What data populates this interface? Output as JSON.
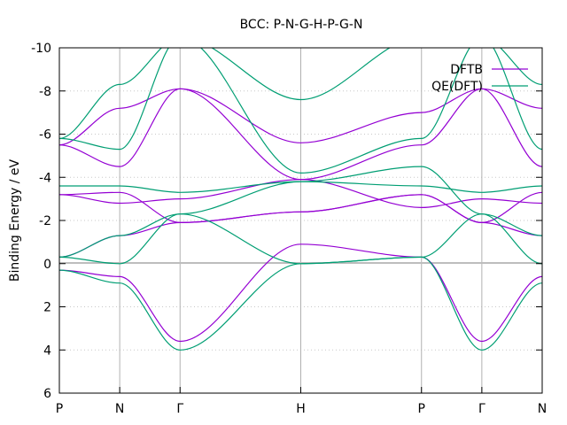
{
  "chart_data": {
    "type": "line",
    "title": "BCC: P-N-G-H-P-G-N",
    "xlabel": "",
    "ylabel": "Binding Energy / eV",
    "ylim": [
      6,
      -10
    ],
    "y_ticks": [
      "-10",
      "-8",
      "-6",
      "-4",
      "-2",
      "0",
      "2",
      "4",
      "6"
    ],
    "y_tick_values": [
      -10,
      -8,
      -6,
      -4,
      -2,
      0,
      2,
      4,
      6
    ],
    "x_ticks": [
      "P",
      "N",
      "Γ",
      "H",
      "P",
      "Γ",
      "N"
    ],
    "x_tick_values": [
      0.0,
      0.5,
      1.0,
      2.0,
      3.0,
      3.5,
      4.0
    ],
    "grid": true,
    "legend_position": "top-right",
    "fermi_level": 0,
    "series": [
      {
        "name": "DFTB",
        "color": "#9400d3",
        "x": [
          0,
          0.5,
          1,
          2,
          3,
          3.5,
          4
        ],
        "bands": [
          [
            0.3,
            0.6,
            3.6,
            -0.9,
            -0.3,
            3.6,
            0.6
          ],
          [
            -0.3,
            -1.3,
            -1.9,
            -2.4,
            -3.2,
            -1.9,
            -1.3
          ],
          [
            -3.2,
            -3.3,
            -1.9,
            -2.4,
            -3.2,
            -1.9,
            -3.3
          ],
          [
            -3.2,
            -2.8,
            -3.0,
            -3.9,
            -2.6,
            -3.0,
            -2.8
          ],
          [
            -5.5,
            -4.5,
            -8.1,
            -3.9,
            -5.5,
            -8.1,
            -4.5
          ],
          [
            -5.5,
            -7.2,
            -8.1,
            -5.6,
            -7.0,
            -8.1,
            -7.2
          ]
        ]
      },
      {
        "name": "QE(DFT)",
        "color": "#009e73",
        "x": [
          0,
          0.5,
          1,
          2,
          3,
          3.5,
          4
        ],
        "bands": [
          [
            0.3,
            0.9,
            4.0,
            0.0,
            -0.3,
            4.0,
            0.9
          ],
          [
            -0.3,
            0.0,
            -2.3,
            0.0,
            -0.3,
            -2.3,
            0.0
          ],
          [
            -0.3,
            -1.3,
            -2.3,
            -3.8,
            -4.5,
            -2.3,
            -1.3
          ],
          [
            -3.6,
            -3.6,
            -3.3,
            -3.8,
            -3.6,
            -3.3,
            -3.6
          ],
          [
            -5.8,
            -5.3,
            -10.5,
            -4.2,
            -5.8,
            -10.5,
            -5.3
          ],
          [
            -5.8,
            -8.3,
            -10.5,
            -7.6,
            -10.5,
            -10.5,
            -8.3
          ]
        ]
      }
    ]
  }
}
